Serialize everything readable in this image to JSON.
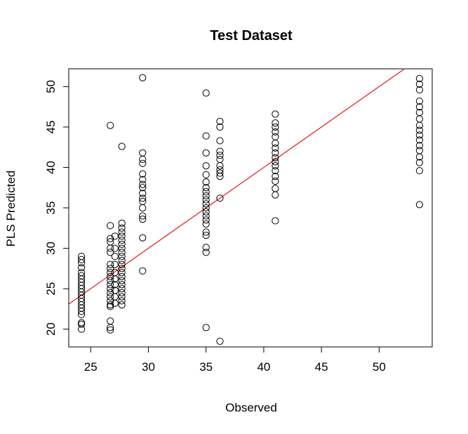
{
  "chart_data": {
    "type": "scatter",
    "title": "Test Dataset",
    "xlabel": "Observed",
    "ylabel": "PLS Predicted",
    "xlim": [
      23.1,
      54.6
    ],
    "ylim": [
      17.8,
      52.2
    ],
    "xticks": [
      25,
      30,
      35,
      40,
      45,
      50
    ],
    "yticks": [
      20,
      25,
      30,
      35,
      40,
      45,
      50
    ],
    "grid": false,
    "legend": "none",
    "point_color": "#000000",
    "line_color": "#e41a1c",
    "fit_line": {
      "intercept": 0.0,
      "slope": 1.0
    },
    "series": [
      {
        "points": [
          [
            24.2,
            29.0
          ],
          [
            24.2,
            28.6
          ],
          [
            24.2,
            28.2
          ],
          [
            24.2,
            27.6
          ],
          [
            24.2,
            27.0
          ],
          [
            24.2,
            26.6
          ],
          [
            24.2,
            26.2
          ],
          [
            24.2,
            25.8
          ],
          [
            24.2,
            25.4
          ],
          [
            24.2,
            25.0
          ],
          [
            24.2,
            24.6
          ],
          [
            24.2,
            24.2
          ],
          [
            24.2,
            23.8
          ],
          [
            24.2,
            23.4
          ],
          [
            24.2,
            23.0
          ],
          [
            24.2,
            22.6
          ],
          [
            24.2,
            22.2
          ],
          [
            24.2,
            21.8
          ],
          [
            24.2,
            20.8
          ],
          [
            24.2,
            20.6
          ],
          [
            24.2,
            20.0
          ],
          [
            26.7,
            45.2
          ],
          [
            26.7,
            32.8
          ],
          [
            26.7,
            31.2
          ],
          [
            26.7,
            30.8
          ],
          [
            26.7,
            30.0
          ],
          [
            26.7,
            29.5
          ],
          [
            26.7,
            28.0
          ],
          [
            26.7,
            27.5
          ],
          [
            26.7,
            27.0
          ],
          [
            26.7,
            26.5
          ],
          [
            26.7,
            26.0
          ],
          [
            26.7,
            25.5
          ],
          [
            26.7,
            25.0
          ],
          [
            26.7,
            24.5
          ],
          [
            26.7,
            24.0
          ],
          [
            26.7,
            23.5
          ],
          [
            26.7,
            23.0
          ],
          [
            26.7,
            22.8
          ],
          [
            26.7,
            21.0
          ],
          [
            26.7,
            20.2
          ],
          [
            26.7,
            19.9
          ],
          [
            27.1,
            31.5
          ],
          [
            27.1,
            30.0
          ],
          [
            27.1,
            29.0
          ],
          [
            27.1,
            28.0
          ],
          [
            27.1,
            27.0
          ],
          [
            27.1,
            26.2
          ],
          [
            27.1,
            25.5
          ],
          [
            27.1,
            24.8
          ],
          [
            27.1,
            24.0
          ],
          [
            27.1,
            23.2
          ],
          [
            27.7,
            42.6
          ],
          [
            27.7,
            33.1
          ],
          [
            27.7,
            32.5
          ],
          [
            27.7,
            32.0
          ],
          [
            27.7,
            31.5
          ],
          [
            27.7,
            31.0
          ],
          [
            27.7,
            30.5
          ],
          [
            27.7,
            30.0
          ],
          [
            27.7,
            29.5
          ],
          [
            27.7,
            29.0
          ],
          [
            27.7,
            28.5
          ],
          [
            27.7,
            28.0
          ],
          [
            27.7,
            27.5
          ],
          [
            27.7,
            27.0
          ],
          [
            27.7,
            26.5
          ],
          [
            27.7,
            26.0
          ],
          [
            27.7,
            25.5
          ],
          [
            27.7,
            25.0
          ],
          [
            27.7,
            24.5
          ],
          [
            27.7,
            24.0
          ],
          [
            27.7,
            23.5
          ],
          [
            27.7,
            23.0
          ],
          [
            29.5,
            51.1
          ],
          [
            29.5,
            41.8
          ],
          [
            29.5,
            41.0
          ],
          [
            29.5,
            40.5
          ],
          [
            29.5,
            39.2
          ],
          [
            29.5,
            38.5
          ],
          [
            29.5,
            37.9
          ],
          [
            29.5,
            37.5
          ],
          [
            29.5,
            36.8
          ],
          [
            29.5,
            36.2
          ],
          [
            29.5,
            35.8
          ],
          [
            29.5,
            35.0
          ],
          [
            29.5,
            34.0
          ],
          [
            29.5,
            33.6
          ],
          [
            29.5,
            31.3
          ],
          [
            29.5,
            27.2
          ],
          [
            35.0,
            49.2
          ],
          [
            35.0,
            43.9
          ],
          [
            35.0,
            41.8
          ],
          [
            35.0,
            40.2
          ],
          [
            35.0,
            39.1
          ],
          [
            35.0,
            38.2
          ],
          [
            35.0,
            37.5
          ],
          [
            35.0,
            37.0
          ],
          [
            35.0,
            36.5
          ],
          [
            35.0,
            36.0
          ],
          [
            35.0,
            35.5
          ],
          [
            35.0,
            35.0
          ],
          [
            35.0,
            34.5
          ],
          [
            35.0,
            34.0
          ],
          [
            35.0,
            33.5
          ],
          [
            35.0,
            33.0
          ],
          [
            35.0,
            32.0
          ],
          [
            35.0,
            31.6
          ],
          [
            35.0,
            30.1
          ],
          [
            35.0,
            29.5
          ],
          [
            35.0,
            20.2
          ],
          [
            36.2,
            45.7
          ],
          [
            36.2,
            45.0
          ],
          [
            36.2,
            43.3
          ],
          [
            36.2,
            42.0
          ],
          [
            36.2,
            41.5
          ],
          [
            36.2,
            41.0
          ],
          [
            36.2,
            40.2
          ],
          [
            36.2,
            39.7
          ],
          [
            36.2,
            39.3
          ],
          [
            36.2,
            38.9
          ],
          [
            36.2,
            36.2
          ],
          [
            36.2,
            18.5
          ],
          [
            41.0,
            46.6
          ],
          [
            41.0,
            45.5
          ],
          [
            41.0,
            45.0
          ],
          [
            41.0,
            44.4
          ],
          [
            41.0,
            43.8
          ],
          [
            41.0,
            43.0
          ],
          [
            41.0,
            42.4
          ],
          [
            41.0,
            41.8
          ],
          [
            41.0,
            41.2
          ],
          [
            41.0,
            40.7
          ],
          [
            41.0,
            40.2
          ],
          [
            41.0,
            39.6
          ],
          [
            41.0,
            38.9
          ],
          [
            41.0,
            38.3
          ],
          [
            41.0,
            37.4
          ],
          [
            41.0,
            36.6
          ],
          [
            41.0,
            33.4
          ],
          [
            53.5,
            51.0
          ],
          [
            53.5,
            50.3
          ],
          [
            53.5,
            49.6
          ],
          [
            53.5,
            48.2
          ],
          [
            53.5,
            47.5
          ],
          [
            53.5,
            46.8
          ],
          [
            53.5,
            46.0
          ],
          [
            53.5,
            45.2
          ],
          [
            53.5,
            44.6
          ],
          [
            53.5,
            44.0
          ],
          [
            53.5,
            43.4
          ],
          [
            53.5,
            42.7
          ],
          [
            53.5,
            42.1
          ],
          [
            53.5,
            41.3
          ],
          [
            53.5,
            40.6
          ],
          [
            53.5,
            39.6
          ],
          [
            53.5,
            35.4
          ]
        ]
      }
    ]
  }
}
